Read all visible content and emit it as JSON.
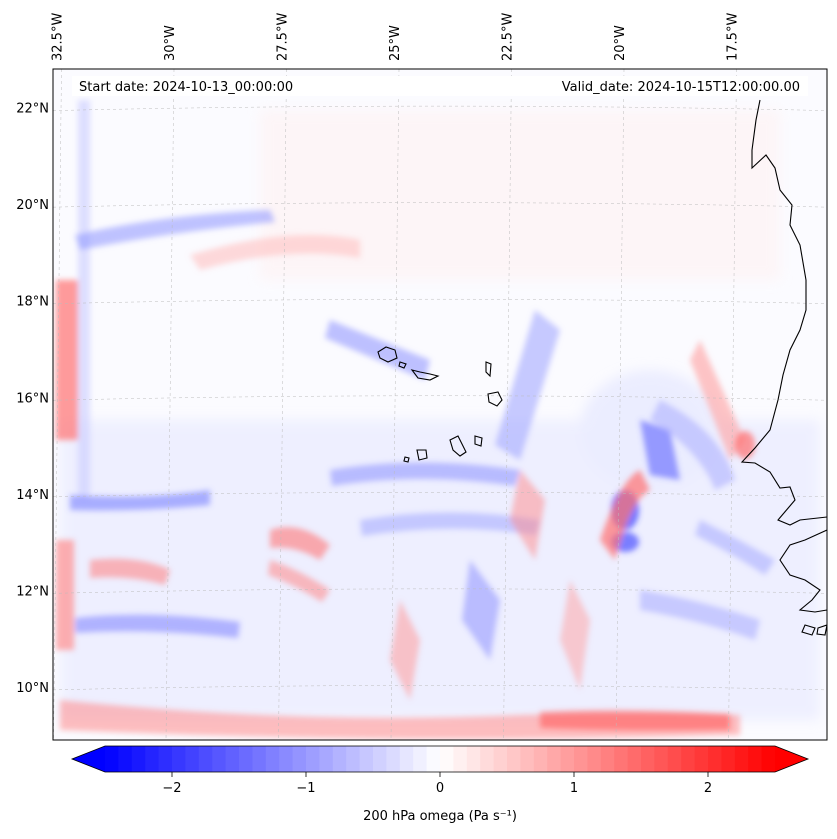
{
  "map": {
    "start_date_label": "Start date: 2024-10-13_00:00:00",
    "valid_date_label": "Valid_date: 2024-10-15T12:00:00.00",
    "lon_ticks": [
      {
        "value": -32.5,
        "label": "32.5°W"
      },
      {
        "value": -30.0,
        "label": "30°W"
      },
      {
        "value": -27.5,
        "label": "27.5°W"
      },
      {
        "value": -25.0,
        "label": "25°W"
      },
      {
        "value": -22.5,
        "label": "22.5°W"
      },
      {
        "value": -20.0,
        "label": "20°W"
      },
      {
        "value": -17.5,
        "label": "17.5°W"
      }
    ],
    "lat_ticks": [
      {
        "value": 22,
        "label": "22°N"
      },
      {
        "value": 20,
        "label": "20°N"
      },
      {
        "value": 18,
        "label": "18°N"
      },
      {
        "value": 16,
        "label": "16°N"
      },
      {
        "value": 14,
        "label": "14°N"
      },
      {
        "value": 12,
        "label": "12°N"
      },
      {
        "value": 10,
        "label": "10°N"
      }
    ],
    "lon_range": [
      -32.6,
      -15.4
    ],
    "lat_range": [
      8.9,
      22.8
    ],
    "gridlines": true,
    "field_colors": {
      "negative": "#0000ff",
      "zero": "#ffffff",
      "positive": "#ff0000",
      "coastline": "#000000",
      "gridline": "#bbbbbb"
    }
  },
  "colorbar": {
    "label": "200 hPa omega (Pa s⁻¹)",
    "range": [
      -2.5,
      2.5
    ],
    "extend": "both",
    "ticks": [
      {
        "value": -2,
        "label": "−2"
      },
      {
        "value": -1,
        "label": "−1"
      },
      {
        "value": 0,
        "label": "0"
      },
      {
        "value": 1,
        "label": "1"
      },
      {
        "value": 2,
        "label": "2"
      }
    ]
  }
}
